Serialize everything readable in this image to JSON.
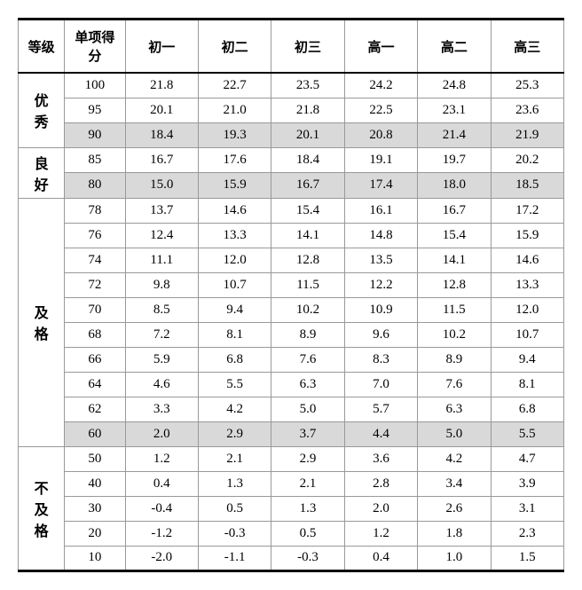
{
  "headers": [
    "等级",
    "单项得分",
    "初一",
    "初二",
    "初三",
    "高一",
    "高二",
    "高三"
  ],
  "colors": {
    "bg": "#ffffff",
    "shade": "#d9d9d9",
    "border": "#999999",
    "heavy": "#000000"
  },
  "grades": [
    {
      "label": "优秀",
      "rowCount": 3
    },
    {
      "label": "良好",
      "rowCount": 2
    },
    {
      "label": "及格",
      "rowCount": 10
    },
    {
      "label": "不及格",
      "rowCount": 5
    }
  ],
  "rows": [
    {
      "score": "100",
      "vals": [
        "21.8",
        "22.7",
        "23.5",
        "24.2",
        "24.8",
        "25.3"
      ],
      "shaded": false
    },
    {
      "score": "95",
      "vals": [
        "20.1",
        "21.0",
        "21.8",
        "22.5",
        "23.1",
        "23.6"
      ],
      "shaded": false
    },
    {
      "score": "90",
      "vals": [
        "18.4",
        "19.3",
        "20.1",
        "20.8",
        "21.4",
        "21.9"
      ],
      "shaded": true
    },
    {
      "score": "85",
      "vals": [
        "16.7",
        "17.6",
        "18.4",
        "19.1",
        "19.7",
        "20.2"
      ],
      "shaded": false
    },
    {
      "score": "80",
      "vals": [
        "15.0",
        "15.9",
        "16.7",
        "17.4",
        "18.0",
        "18.5"
      ],
      "shaded": true
    },
    {
      "score": "78",
      "vals": [
        "13.7",
        "14.6",
        "15.4",
        "16.1",
        "16.7",
        "17.2"
      ],
      "shaded": false
    },
    {
      "score": "76",
      "vals": [
        "12.4",
        "13.3",
        "14.1",
        "14.8",
        "15.4",
        "15.9"
      ],
      "shaded": false
    },
    {
      "score": "74",
      "vals": [
        "11.1",
        "12.0",
        "12.8",
        "13.5",
        "14.1",
        "14.6"
      ],
      "shaded": false
    },
    {
      "score": "72",
      "vals": [
        "9.8",
        "10.7",
        "11.5",
        "12.2",
        "12.8",
        "13.3"
      ],
      "shaded": false
    },
    {
      "score": "70",
      "vals": [
        "8.5",
        "9.4",
        "10.2",
        "10.9",
        "11.5",
        "12.0"
      ],
      "shaded": false
    },
    {
      "score": "68",
      "vals": [
        "7.2",
        "8.1",
        "8.9",
        "9.6",
        "10.2",
        "10.7"
      ],
      "shaded": false
    },
    {
      "score": "66",
      "vals": [
        "5.9",
        "6.8",
        "7.6",
        "8.3",
        "8.9",
        "9.4"
      ],
      "shaded": false
    },
    {
      "score": "64",
      "vals": [
        "4.6",
        "5.5",
        "6.3",
        "7.0",
        "7.6",
        "8.1"
      ],
      "shaded": false
    },
    {
      "score": "62",
      "vals": [
        "3.3",
        "4.2",
        "5.0",
        "5.7",
        "6.3",
        "6.8"
      ],
      "shaded": false
    },
    {
      "score": "60",
      "vals": [
        "2.0",
        "2.9",
        "3.7",
        "4.4",
        "5.0",
        "5.5"
      ],
      "shaded": true
    },
    {
      "score": "50",
      "vals": [
        "1.2",
        "2.1",
        "2.9",
        "3.6",
        "4.2",
        "4.7"
      ],
      "shaded": false
    },
    {
      "score": "40",
      "vals": [
        "0.4",
        "1.3",
        "2.1",
        "2.8",
        "3.4",
        "3.9"
      ],
      "shaded": false
    },
    {
      "score": "30",
      "vals": [
        "-0.4",
        "0.5",
        "1.3",
        "2.0",
        "2.6",
        "3.1"
      ],
      "shaded": false
    },
    {
      "score": "20",
      "vals": [
        "-1.2",
        "-0.3",
        "0.5",
        "1.2",
        "1.8",
        "2.3"
      ],
      "shaded": false
    },
    {
      "score": "10",
      "vals": [
        "-2.0",
        "-1.1",
        "-0.3",
        "0.4",
        "1.0",
        "1.5"
      ],
      "shaded": false
    }
  ]
}
